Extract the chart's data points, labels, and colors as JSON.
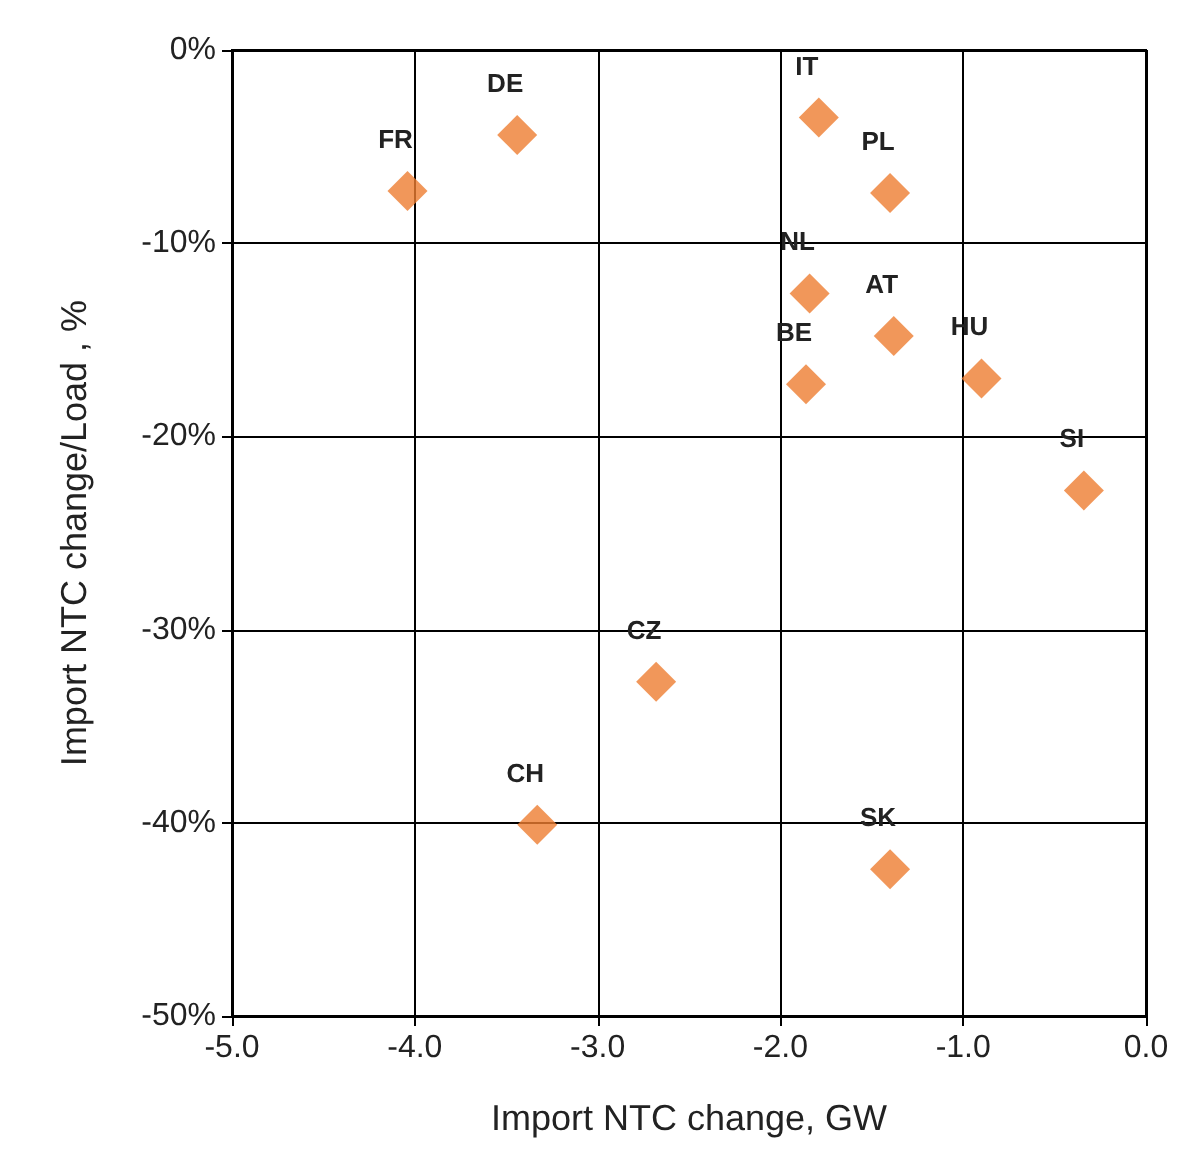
{
  "chart_data": {
    "type": "scatter",
    "xlabel": "Import NTC change, GW",
    "ylabel": "Import NTC change/Load , %",
    "x": [
      -4.04,
      -3.44,
      -1.79,
      -1.4,
      -1.84,
      -1.38,
      -1.86,
      -0.9,
      -0.34,
      -2.68,
      -3.33,
      -1.4
    ],
    "series": [
      {
        "color": "#ee7d31",
        "values": [
          -7.3,
          -4.4,
          -3.5,
          -7.4,
          -12.6,
          -14.8,
          -17.3,
          -17.0,
          -22.8,
          -32.7,
          -40.1,
          -42.4
        ]
      }
    ],
    "annotations": [
      {
        "text": "FR",
        "x": -4.04,
        "y": -7.3
      },
      {
        "text": "DE",
        "x": -3.44,
        "y": -4.4
      },
      {
        "text": "IT",
        "x": -1.79,
        "y": -3.5
      },
      {
        "text": "PL",
        "x": -1.4,
        "y": -7.4
      },
      {
        "text": "NL",
        "x": -1.84,
        "y": -12.6
      },
      {
        "text": "AT",
        "x": -1.38,
        "y": -14.8
      },
      {
        "text": "BE",
        "x": -1.86,
        "y": -17.3
      },
      {
        "text": "HU",
        "x": -0.9,
        "y": -17.0
      },
      {
        "text": "SI",
        "x": -0.34,
        "y": -22.8
      },
      {
        "text": "CZ",
        "x": -2.68,
        "y": -32.7
      },
      {
        "text": "CH",
        "x": -3.33,
        "y": -40.1
      },
      {
        "text": "SK",
        "x": -1.4,
        "y": -42.4
      }
    ],
    "xlim": [
      -5,
      0
    ],
    "xticks": [
      {
        "value": -5,
        "label": "-5.0"
      },
      {
        "value": -4,
        "label": "-4.0"
      },
      {
        "value": -3,
        "label": "-3.0"
      },
      {
        "value": -2,
        "label": "-2.0"
      },
      {
        "value": -1,
        "label": "-1.0"
      },
      {
        "value": 0,
        "label": "0.0"
      }
    ],
    "ylim": [
      -50,
      0
    ],
    "yticks": [
      {
        "value": -50,
        "label": "-50%"
      },
      {
        "value": -40,
        "label": "-40%"
      },
      {
        "value": -30,
        "label": "-30%"
      },
      {
        "value": -20,
        "label": "-20%"
      },
      {
        "value": -10,
        "label": "-10%"
      },
      {
        "value": 0,
        "label": "0%"
      }
    ],
    "grid": true,
    "marker": "diamond"
  }
}
